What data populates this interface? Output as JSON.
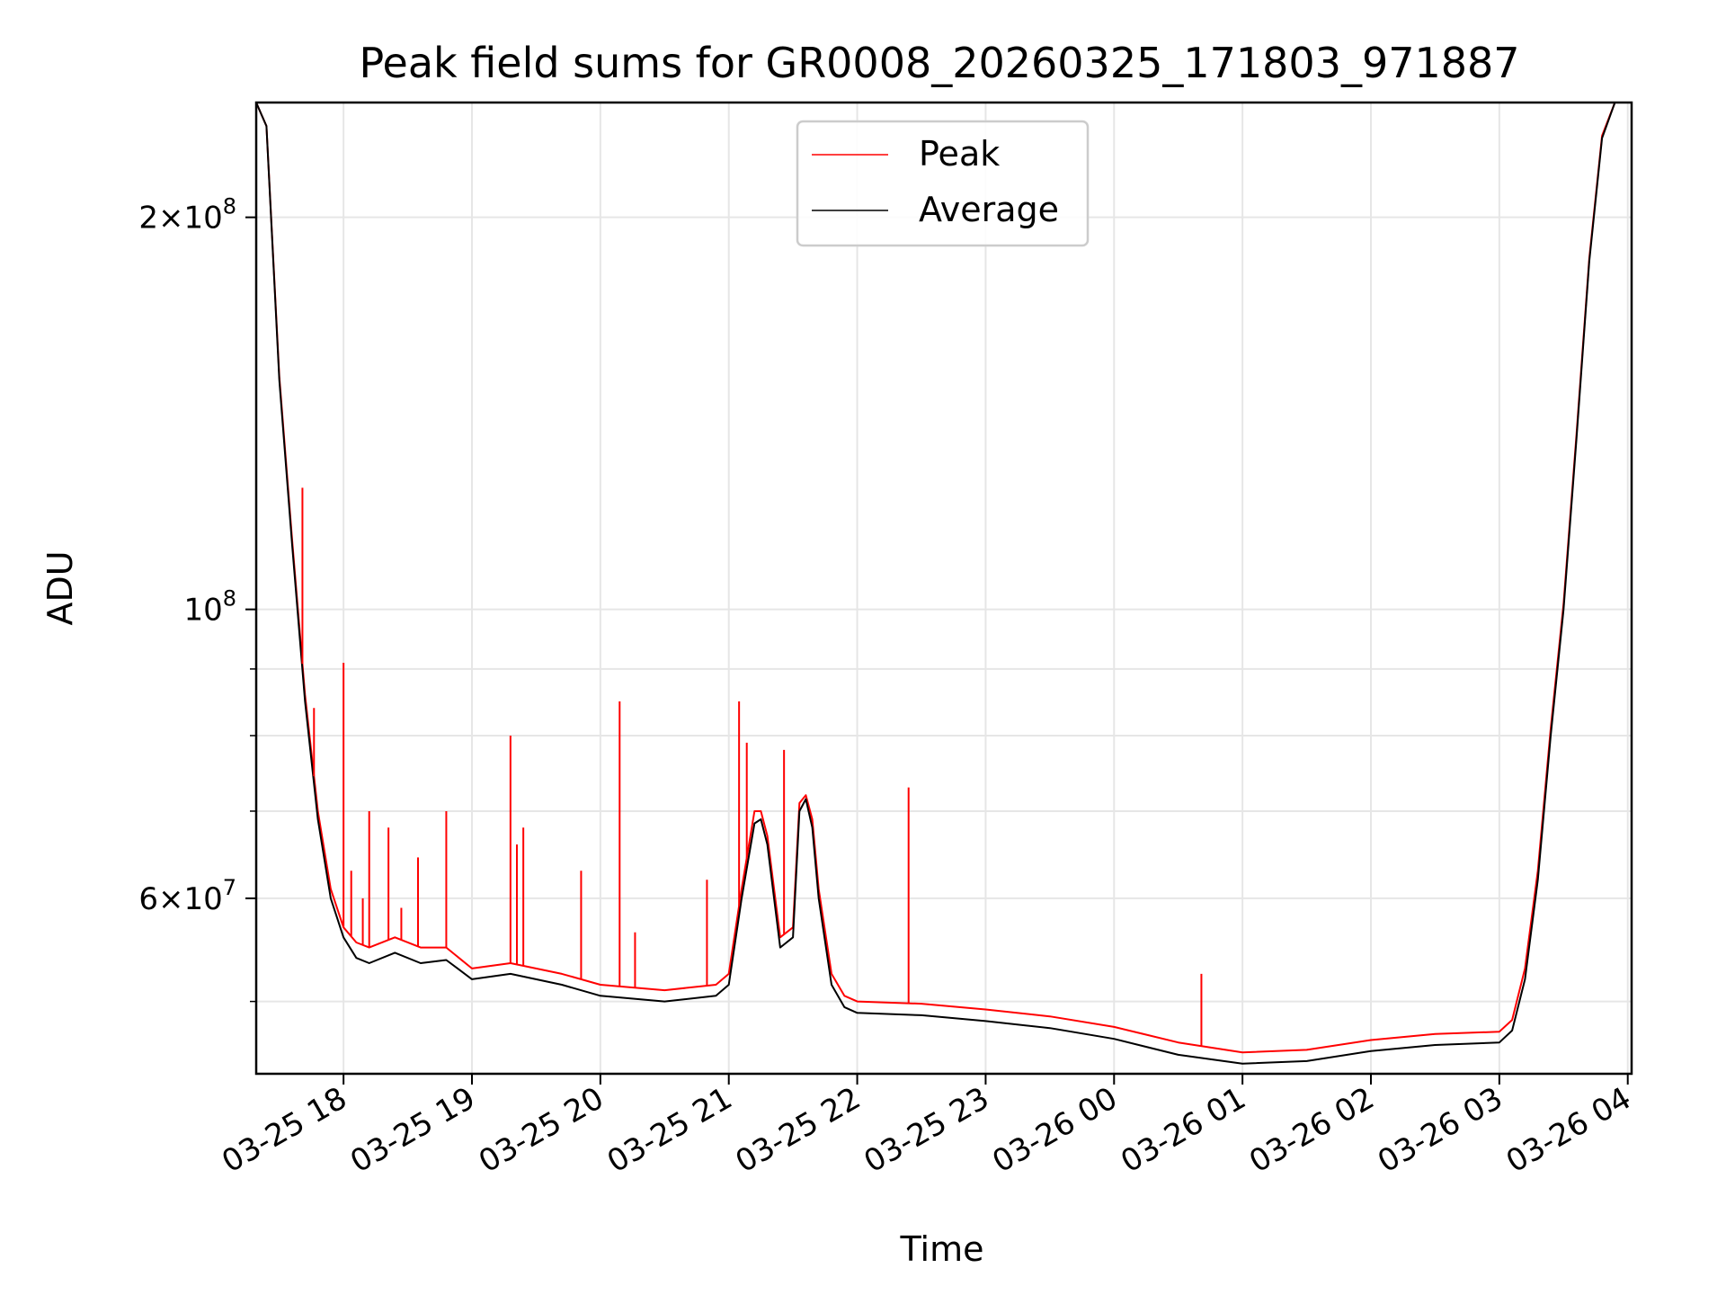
{
  "chart_data": {
    "type": "line",
    "title": "Peak field sums for GR0008_20260325_171803_971887",
    "xlabel": "Time",
    "ylabel": "ADU",
    "yscale": "log",
    "ylim": [
      44000000,
      245000000
    ],
    "x_range_hours": [
      -0.68,
      10.03
    ],
    "x_ticks": [
      {
        "hour": 0,
        "label": "03-25 18"
      },
      {
        "hour": 1,
        "label": "03-25 19"
      },
      {
        "hour": 2,
        "label": "03-25 20"
      },
      {
        "hour": 3,
        "label": "03-25 21"
      },
      {
        "hour": 4,
        "label": "03-25 22"
      },
      {
        "hour": 5,
        "label": "03-25 23"
      },
      {
        "hour": 6,
        "label": "03-26 00"
      },
      {
        "hour": 7,
        "label": "03-26 01"
      },
      {
        "hour": 8,
        "label": "03-26 02"
      },
      {
        "hour": 9,
        "label": "03-26 03"
      },
      {
        "hour": 10,
        "label": "03-26 04"
      }
    ],
    "y_major_ticks": [
      {
        "value": 60000000,
        "base": "6",
        "exp": "7"
      },
      {
        "value": 100000000,
        "base": "",
        "exp": "8"
      },
      {
        "value": 200000000,
        "base": "2",
        "exp": "8"
      }
    ],
    "y_minor_ticks": [
      50000000,
      70000000,
      80000000,
      90000000
    ],
    "legend": {
      "position": "upper center",
      "entries": [
        "Peak",
        "Average"
      ]
    },
    "series": [
      {
        "name": "Average",
        "color": "#000000",
        "x": [
          -0.68,
          -0.6,
          -0.5,
          -0.4,
          -0.3,
          -0.2,
          -0.1,
          0.0,
          0.1,
          0.2,
          0.4,
          0.6,
          0.8,
          1.0,
          1.3,
          1.7,
          2.0,
          2.5,
          2.9,
          3.0,
          3.1,
          3.2,
          3.25,
          3.3,
          3.4,
          3.5,
          3.55,
          3.6,
          3.65,
          3.7,
          3.8,
          3.9,
          4.0,
          4.5,
          5.0,
          5.5,
          6.0,
          6.5,
          7.0,
          7.5,
          8.0,
          8.5,
          9.0,
          9.1,
          9.2,
          9.3,
          9.4,
          9.5,
          9.6,
          9.7,
          9.8,
          9.9
        ],
        "y": [
          245000000,
          235000000,
          150000000,
          112000000,
          85000000,
          69000000,
          60000000,
          56000000,
          54000000,
          53500000,
          54500000,
          53500000,
          53800000,
          52000000,
          52500000,
          51500000,
          50500000,
          50000000,
          50500000,
          51500000,
          60000000,
          68500000,
          69000000,
          66000000,
          55000000,
          56000000,
          70000000,
          71500000,
          68000000,
          60000000,
          51500000,
          49500000,
          49000000,
          48800000,
          48300000,
          47700000,
          46800000,
          45500000,
          44800000,
          45000000,
          45800000,
          46300000,
          46500000,
          47500000,
          52000000,
          62000000,
          80000000,
          100000000,
          135000000,
          185000000,
          230000000,
          245000000
        ]
      },
      {
        "name": "Peak",
        "color": "#ff0000",
        "x": [
          -0.68,
          -0.6,
          -0.5,
          -0.4,
          -0.3,
          -0.2,
          -0.1,
          0.0,
          0.1,
          0.2,
          0.4,
          0.6,
          0.8,
          1.0,
          1.3,
          1.7,
          2.0,
          2.5,
          2.9,
          3.0,
          3.1,
          3.2,
          3.25,
          3.3,
          3.4,
          3.5,
          3.55,
          3.6,
          3.65,
          3.7,
          3.8,
          3.9,
          4.0,
          4.5,
          5.0,
          5.5,
          6.0,
          6.5,
          7.0,
          7.5,
          8.0,
          8.5,
          9.0,
          9.1,
          9.2,
          9.3,
          9.4,
          9.5,
          9.6,
          9.7,
          9.8,
          9.9
        ],
        "y": [
          245000000,
          235000000,
          151000000,
          113000000,
          86000000,
          70000000,
          61000000,
          57000000,
          55500000,
          55000000,
          56000000,
          55000000,
          55000000,
          53000000,
          53500000,
          52500000,
          51500000,
          51000000,
          51500000,
          52500000,
          61000000,
          70000000,
          70000000,
          67000000,
          56000000,
          57000000,
          71000000,
          72000000,
          69000000,
          61000000,
          52500000,
          50500000,
          50000000,
          49800000,
          49300000,
          48700000,
          47800000,
          46500000,
          45700000,
          45900000,
          46700000,
          47200000,
          47400000,
          48400000,
          53000000,
          63000000,
          81000000,
          101000000,
          136000000,
          186000000,
          231000000,
          245000000
        ]
      }
    ],
    "peak_spikes": [
      {
        "hour": -0.32,
        "value": 124000000
      },
      {
        "hour": -0.23,
        "value": 84000000
      },
      {
        "hour": 0.0,
        "value": 91000000
      },
      {
        "hour": 0.06,
        "value": 63000000
      },
      {
        "hour": 0.15,
        "value": 60000000
      },
      {
        "hour": 0.2,
        "value": 70000000
      },
      {
        "hour": 0.35,
        "value": 68000000
      },
      {
        "hour": 0.45,
        "value": 59000000
      },
      {
        "hour": 0.58,
        "value": 64500000
      },
      {
        "hour": 0.8,
        "value": 70000000
      },
      {
        "hour": 1.3,
        "value": 80000000
      },
      {
        "hour": 1.35,
        "value": 66000000
      },
      {
        "hour": 1.4,
        "value": 68000000
      },
      {
        "hour": 1.85,
        "value": 63000000
      },
      {
        "hour": 2.15,
        "value": 85000000
      },
      {
        "hour": 2.27,
        "value": 56500000
      },
      {
        "hour": 2.83,
        "value": 62000000
      },
      {
        "hour": 3.08,
        "value": 85000000
      },
      {
        "hour": 3.14,
        "value": 79000000
      },
      {
        "hour": 3.43,
        "value": 78000000
      },
      {
        "hour": 4.4,
        "value": 73000000
      },
      {
        "hour": 6.68,
        "value": 52500000
      }
    ]
  }
}
